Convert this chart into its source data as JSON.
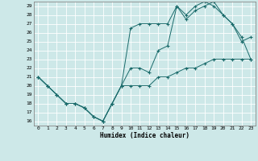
{
  "xlabel": "Humidex (Indice chaleur)",
  "bg_color": "#cde8e8",
  "grid_color": "#ffffff",
  "line_color": "#1a6b6b",
  "xlim": [
    -0.5,
    23.5
  ],
  "ylim": [
    15.5,
    29.5
  ],
  "xticks": [
    0,
    1,
    2,
    3,
    4,
    5,
    6,
    7,
    8,
    9,
    10,
    11,
    12,
    13,
    14,
    15,
    16,
    17,
    18,
    19,
    20,
    21,
    22,
    23
  ],
  "yticks": [
    16,
    17,
    18,
    19,
    20,
    21,
    22,
    23,
    24,
    25,
    26,
    27,
    28,
    29
  ],
  "line1_x": [
    0,
    1,
    2,
    3,
    4,
    5,
    6,
    7,
    8,
    9,
    10,
    11,
    12,
    13,
    14,
    15,
    16,
    17,
    18,
    19,
    20,
    21,
    22,
    23
  ],
  "line1_y": [
    21,
    20,
    19,
    18,
    18,
    17.5,
    16.5,
    16,
    18,
    20,
    20,
    20,
    20,
    21,
    21,
    21.5,
    22,
    22,
    22.5,
    23,
    23,
    23,
    23,
    23
  ],
  "line2_x": [
    0,
    1,
    2,
    3,
    4,
    5,
    6,
    7,
    8,
    9,
    10,
    11,
    12,
    13,
    14,
    15,
    16,
    17,
    18,
    19,
    20,
    21,
    22,
    23
  ],
  "line2_y": [
    21,
    20,
    19,
    18,
    18,
    17.5,
    16.5,
    16,
    18,
    20,
    22,
    22,
    21.5,
    24,
    24.5,
    29,
    27.5,
    28.5,
    29,
    29.5,
    28,
    27,
    25.5,
    23
  ],
  "line3_x": [
    0,
    1,
    2,
    3,
    4,
    5,
    6,
    7,
    8,
    9,
    10,
    11,
    12,
    13,
    14,
    15,
    16,
    17,
    18,
    19,
    20,
    21,
    22,
    23
  ],
  "line3_y": [
    21,
    20,
    19,
    18,
    18,
    17.5,
    16.5,
    16,
    18,
    20,
    26.5,
    27,
    27,
    27,
    27,
    29,
    28,
    29,
    29.5,
    29,
    28,
    27,
    25,
    25.5
  ]
}
